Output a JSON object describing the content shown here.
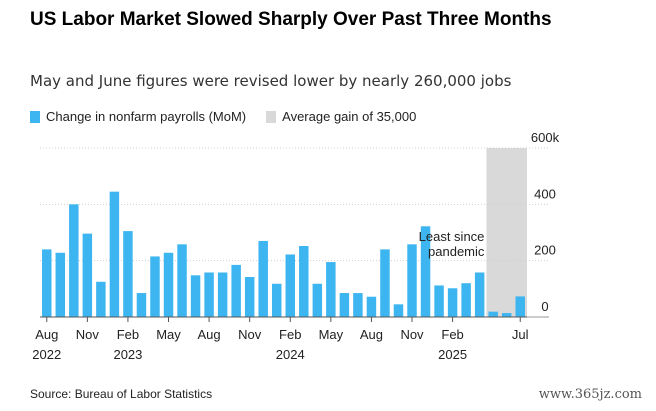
{
  "title": "US Labor Market Slowed Sharply Over Past Three Months",
  "subtitle": "May and June figures were revised lower by nearly 260,000 jobs",
  "legend": {
    "bars_label": "Change in nonfarm payrolls (MoM)",
    "shade_label": "Average gain of 35,000"
  },
  "source": "Source: Bureau of Labor Statistics",
  "watermark": "www.365jz.com",
  "colors": {
    "bar": "#3db5f0",
    "shade": "#d9d9d9",
    "text": "#1a1a1a"
  },
  "chart_data": {
    "type": "bar",
    "categories": [
      "2022-08",
      "2022-09",
      "2022-10",
      "2022-11",
      "2022-12",
      "2023-01",
      "2023-02",
      "2023-03",
      "2023-04",
      "2023-05",
      "2023-06",
      "2023-07",
      "2023-08",
      "2023-09",
      "2023-10",
      "2023-11",
      "2023-12",
      "2024-01",
      "2024-02",
      "2024-03",
      "2024-04",
      "2024-05",
      "2024-06",
      "2024-07",
      "2024-08",
      "2024-09",
      "2024-10",
      "2024-11",
      "2024-12",
      "2025-01",
      "2025-02",
      "2025-03",
      "2025-04",
      "2025-05",
      "2025-06",
      "2025-07"
    ],
    "values": [
      240,
      228,
      400,
      296,
      125,
      445,
      305,
      85,
      215,
      228,
      258,
      148,
      158,
      158,
      185,
      142,
      270,
      118,
      222,
      252,
      118,
      195,
      85,
      85,
      72,
      240,
      45,
      258,
      322,
      112,
      102,
      120,
      158,
      19,
      14,
      73
    ],
    "shade": {
      "from": "2025-05",
      "to": "2025-07",
      "label": "Average gain of 35,000"
    },
    "annotation": [
      "Least since",
      "pandemic"
    ],
    "y_ticks": [
      {
        "value": 0,
        "label": "0"
      },
      {
        "value": 200,
        "label": "200"
      },
      {
        "value": 400,
        "label": "400"
      },
      {
        "value": 600,
        "label": "600k"
      }
    ],
    "x_ticks": [
      {
        "index": 0,
        "month": "Aug",
        "year": "2022"
      },
      {
        "index": 3,
        "month": "Nov",
        "year": ""
      },
      {
        "index": 6,
        "month": "Feb",
        "year": "2023"
      },
      {
        "index": 9,
        "month": "May",
        "year": ""
      },
      {
        "index": 12,
        "month": "Aug",
        "year": ""
      },
      {
        "index": 15,
        "month": "Nov",
        "year": ""
      },
      {
        "index": 18,
        "month": "Feb",
        "year": "2024"
      },
      {
        "index": 21,
        "month": "May",
        "year": ""
      },
      {
        "index": 24,
        "month": "Aug",
        "year": ""
      },
      {
        "index": 27,
        "month": "Nov",
        "year": ""
      },
      {
        "index": 30,
        "month": "Feb",
        "year": "2025"
      },
      {
        "index": 35,
        "month": "Jul",
        "year": ""
      }
    ],
    "ylim": [
      0,
      600
    ],
    "grid": true,
    "legend_position": "top-left"
  }
}
